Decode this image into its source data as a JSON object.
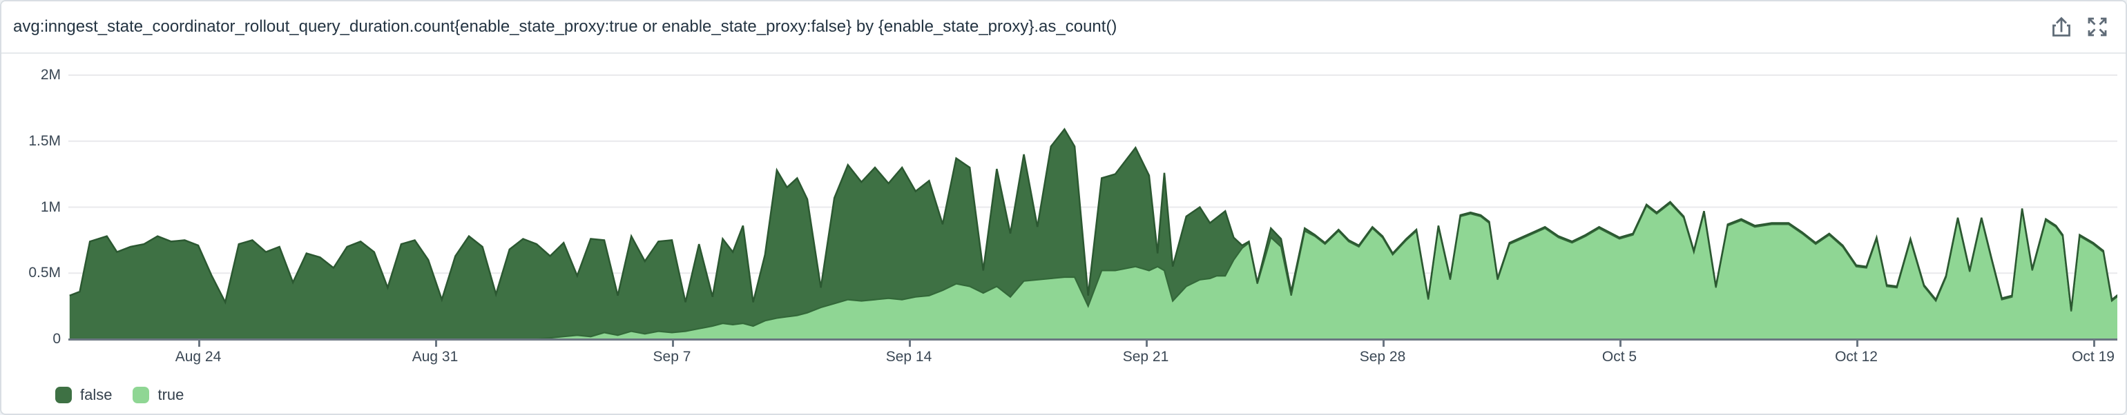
{
  "widget": {
    "title": "avg:inngest_state_coordinator_rollout_query_duration.count{enable_state_proxy:true or enable_state_proxy:false} by {enable_state_proxy}.as_count()",
    "actions": {
      "export_icon": "export-tray-arrow-up",
      "fullscreen_icon": "expand-arrows"
    }
  },
  "legend": {
    "items": [
      {
        "label": "false",
        "color": "#3e7144"
      },
      {
        "label": "true",
        "color": "#8fd694"
      }
    ]
  },
  "chart_data": {
    "type": "area",
    "stacked": true,
    "title": "",
    "xlabel": "",
    "ylabel": "",
    "grid": "horizontal",
    "legend_position": "bottom-left",
    "ylim": [
      0,
      2000000
    ],
    "y_unit": "count (M = millions)",
    "x_domain_note": "t = days since Aug 20",
    "y_ticks": [
      {
        "v": 0,
        "label": "0"
      },
      {
        "v": 0.5,
        "label": "0.5M"
      },
      {
        "v": 1,
        "label": "1M"
      },
      {
        "v": 1.5,
        "label": "1.5M"
      },
      {
        "v": 2,
        "label": "2M"
      }
    ],
    "x_ticks": [
      {
        "t": 4,
        "label": "Aug 24"
      },
      {
        "t": 11,
        "label": "Aug 31"
      },
      {
        "t": 18,
        "label": "Sep 7"
      },
      {
        "t": 25,
        "label": "Sep 14"
      },
      {
        "t": 32,
        "label": "Sep 21"
      },
      {
        "t": 39,
        "label": "Sep 28"
      },
      {
        "t": 46,
        "label": "Oct 5"
      },
      {
        "t": 53,
        "label": "Oct 12"
      },
      {
        "t": 60,
        "label": "Oct 19"
      }
    ],
    "series": [
      {
        "name": "false",
        "fill": "#3e7144",
        "line": "#2b5831"
      },
      {
        "name": "true",
        "fill": "#8fd694",
        "line": "#336839"
      }
    ],
    "t": [
      0.2,
      0.5,
      0.8,
      1.3,
      1.6,
      2.0,
      2.4,
      2.8,
      3.2,
      3.6,
      4.0,
      4.4,
      4.8,
      5.2,
      5.6,
      6.0,
      6.4,
      6.8,
      7.2,
      7.6,
      8.0,
      8.4,
      8.8,
      9.2,
      9.6,
      10.0,
      10.4,
      10.8,
      11.2,
      11.6,
      12.0,
      12.4,
      12.8,
      13.2,
      13.6,
      14.0,
      14.4,
      14.8,
      15.2,
      15.6,
      16.0,
      16.4,
      16.8,
      17.2,
      17.6,
      18.0,
      18.4,
      18.8,
      19.2,
      19.5,
      19.8,
      20.1,
      20.4,
      20.75,
      21.1,
      21.4,
      21.7,
      22.0,
      22.4,
      22.8,
      23.2,
      23.6,
      24.0,
      24.4,
      24.8,
      25.2,
      25.6,
      26.0,
      26.4,
      26.8,
      27.2,
      27.6,
      28.0,
      28.4,
      28.8,
      29.2,
      29.6,
      29.9,
      30.3,
      30.7,
      31.1,
      31.7,
      32.1,
      32.35,
      32.55,
      32.8,
      33.2,
      33.6,
      33.9,
      34.1,
      34.35,
      34.6,
      34.85,
      35.05,
      35.3,
      35.7,
      36.0,
      36.3,
      36.7,
      37.0,
      37.3,
      37.7,
      38.0,
      38.3,
      38.7,
      39.0,
      39.3,
      39.7,
      40.0,
      40.35,
      40.65,
      41.0,
      41.3,
      41.6,
      41.9,
      42.15,
      42.4,
      42.75,
      43.1,
      43.45,
      43.8,
      44.2,
      44.6,
      45.0,
      45.4,
      46.0,
      46.4,
      46.8,
      47.1,
      47.5,
      47.9,
      48.2,
      48.5,
      48.85,
      49.2,
      49.6,
      50.0,
      50.5,
      51.0,
      51.4,
      51.8,
      52.2,
      52.6,
      53.0,
      53.3,
      53.6,
      53.9,
      54.2,
      54.6,
      55.0,
      55.35,
      55.65,
      56.0,
      56.35,
      56.7,
      57.0,
      57.3,
      57.6,
      57.9,
      58.2,
      58.6,
      58.9,
      59.1,
      59.35,
      59.6,
      60.0,
      60.3,
      60.55,
      60.75
    ],
    "values_M": {
      "false": [
        0.33,
        0.36,
        0.74,
        0.78,
        0.66,
        0.7,
        0.72,
        0.78,
        0.74,
        0.75,
        0.71,
        0.48,
        0.28,
        0.72,
        0.75,
        0.66,
        0.7,
        0.43,
        0.65,
        0.62,
        0.54,
        0.7,
        0.74,
        0.66,
        0.39,
        0.72,
        0.75,
        0.6,
        0.3,
        0.63,
        0.78,
        0.7,
        0.34,
        0.68,
        0.76,
        0.72,
        0.62,
        0.71,
        0.45,
        0.74,
        0.7,
        0.3,
        0.72,
        0.55,
        0.68,
        0.7,
        0.22,
        0.64,
        0.22,
        0.64,
        0.55,
        0.74,
        0.18,
        0.5,
        1.12,
        0.98,
        1.04,
        0.86,
        0.15,
        0.8,
        1.02,
        0.9,
        1.0,
        0.87,
        1.0,
        0.8,
        0.87,
        0.5,
        0.95,
        0.9,
        0.17,
        0.89,
        0.48,
        0.96,
        0.4,
        1.0,
        1.12,
        0.99,
        0.08,
        0.7,
        0.73,
        0.9,
        0.72,
        0.1,
        0.74,
        0.26,
        0.53,
        0.55,
        0.42,
        0.44,
        0.49,
        0.17,
        0.02,
        0.01,
        0.01,
        0.07,
        0.06,
        0.03,
        0.02,
        0.01,
        0.01,
        0.01,
        0.01,
        0.01,
        0.01,
        0.01,
        0.01,
        0.01,
        0.01,
        0.01,
        0.01,
        0.01,
        0.01,
        0.01,
        0.01,
        0.01,
        0.01,
        0.01,
        0.01,
        0.01,
        0.01,
        0.01,
        0.01,
        0.01,
        0.01,
        0.01,
        0.01,
        0.01,
        0.01,
        0.01,
        0.01,
        0.01,
        0.01,
        0.01,
        0.01,
        0.01,
        0.01,
        0.01,
        0.01,
        0.01,
        0.01,
        0.01,
        0.01,
        0.01,
        0.01,
        0.01,
        0.01,
        0.01,
        0.01,
        0.01,
        0.01,
        0.01,
        0.01,
        0.01,
        0.01,
        0.01,
        0.01,
        0.01,
        0.01,
        0.01,
        0.01,
        0.01,
        0.01,
        0.01,
        0.01,
        0.01,
        0.01,
        0.01,
        0.01
      ],
      "true": [
        0,
        0,
        0,
        0,
        0,
        0,
        0,
        0,
        0,
        0,
        0,
        0,
        0,
        0,
        0,
        0,
        0,
        0,
        0,
        0,
        0,
        0,
        0,
        0,
        0,
        0,
        0,
        0,
        0,
        0,
        0,
        0,
        0,
        0,
        0,
        0,
        0.01,
        0.02,
        0.03,
        0.02,
        0.05,
        0.03,
        0.06,
        0.04,
        0.06,
        0.05,
        0.06,
        0.08,
        0.1,
        0.12,
        0.11,
        0.12,
        0.1,
        0.14,
        0.16,
        0.17,
        0.18,
        0.2,
        0.24,
        0.27,
        0.3,
        0.29,
        0.3,
        0.31,
        0.3,
        0.32,
        0.33,
        0.37,
        0.42,
        0.4,
        0.35,
        0.4,
        0.32,
        0.44,
        0.45,
        0.46,
        0.47,
        0.47,
        0.25,
        0.52,
        0.52,
        0.55,
        0.52,
        0.55,
        0.52,
        0.29,
        0.4,
        0.45,
        0.46,
        0.48,
        0.48,
        0.6,
        0.69,
        0.73,
        0.42,
        0.77,
        0.7,
        0.33,
        0.82,
        0.78,
        0.72,
        0.82,
        0.74,
        0.7,
        0.84,
        0.77,
        0.64,
        0.75,
        0.82,
        0.3,
        0.85,
        0.45,
        0.93,
        0.95,
        0.93,
        0.88,
        0.45,
        0.72,
        0.76,
        0.8,
        0.84,
        0.77,
        0.73,
        0.78,
        0.84,
        0.76,
        0.79,
        1.01,
        0.95,
        1.03,
        0.92,
        0.66,
        0.96,
        0.39,
        0.86,
        0.9,
        0.85,
        0.87,
        0.87,
        0.8,
        0.72,
        0.79,
        0.7,
        0.55,
        0.54,
        0.76,
        0.4,
        0.39,
        0.75,
        0.4,
        0.29,
        0.47,
        0.91,
        0.51,
        0.91,
        0.6,
        0.3,
        0.32,
        0.98,
        0.52,
        0.9,
        0.85,
        0.78,
        0.21,
        0.78,
        0.72,
        0.66,
        0.29,
        0.33
      ]
    }
  }
}
